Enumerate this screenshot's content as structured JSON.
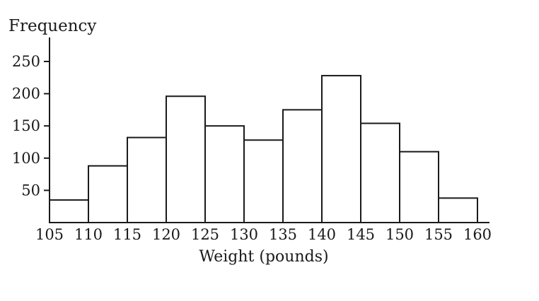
{
  "chart_data": {
    "type": "bar",
    "variant": "histogram",
    "title": "",
    "ylabel": "Frequency",
    "xlabel": "Weight (pounds)",
    "bin_width": 5,
    "bin_edges": [
      105,
      110,
      115,
      120,
      125,
      130,
      135,
      140,
      145,
      150,
      155,
      160
    ],
    "categories": [
      "105-110",
      "110-115",
      "115-120",
      "120-125",
      "125-130",
      "130-135",
      "135-140",
      "140-145",
      "145-150",
      "150-155",
      "155-160"
    ],
    "values": [
      35,
      88,
      132,
      196,
      150,
      128,
      175,
      228,
      154,
      110,
      38
    ],
    "yticks": [
      50,
      100,
      150,
      200,
      250
    ],
    "xticks": [
      105,
      110,
      115,
      120,
      125,
      130,
      135,
      140,
      145,
      150,
      155,
      160
    ],
    "ylim": [
      0,
      280
    ],
    "grid": false,
    "legend": null,
    "colors": {
      "bar_fill": "#ffffff",
      "line": "#1a1a1a",
      "background": "#ffffff"
    }
  }
}
